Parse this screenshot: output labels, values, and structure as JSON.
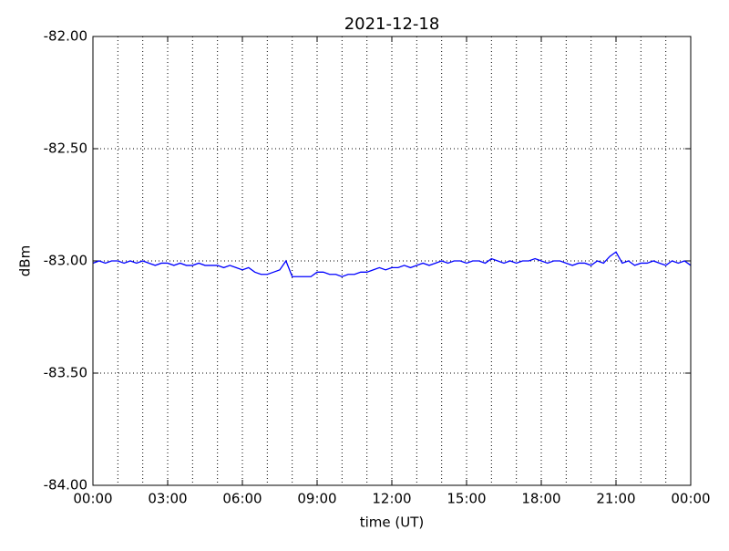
{
  "chart_data": {
    "type": "line",
    "title": "2021-12-18",
    "xlabel": "time (UT)",
    "ylabel": "dBm",
    "x": [
      0,
      0.25,
      0.5,
      0.75,
      1,
      1.25,
      1.5,
      1.75,
      2,
      2.25,
      2.5,
      2.75,
      3,
      3.25,
      3.5,
      3.75,
      4,
      4.25,
      4.5,
      4.75,
      5,
      5.25,
      5.5,
      5.75,
      6,
      6.25,
      6.5,
      6.75,
      7,
      7.25,
      7.5,
      7.75,
      8,
      8.25,
      8.5,
      8.75,
      9,
      9.25,
      9.5,
      9.75,
      10,
      10.25,
      10.5,
      10.75,
      11,
      11.25,
      11.5,
      11.75,
      12,
      12.25,
      12.5,
      12.75,
      13,
      13.25,
      13.5,
      13.75,
      14,
      14.25,
      14.5,
      14.75,
      15,
      15.25,
      15.5,
      15.75,
      16,
      16.25,
      16.5,
      16.75,
      17,
      17.25,
      17.5,
      17.75,
      18,
      18.25,
      18.5,
      18.75,
      19,
      19.25,
      19.5,
      19.75,
      20,
      20.25,
      20.5,
      20.75,
      21,
      21.25,
      21.5,
      21.75,
      22,
      22.25,
      22.5,
      22.75,
      23,
      23.25,
      23.5,
      23.75,
      24
    ],
    "series": [
      {
        "color": "#0000ff",
        "values": [
          -83.01,
          -83.0,
          -83.01,
          -83.0,
          -83.0,
          -83.01,
          -83.0,
          -83.01,
          -83.0,
          -83.01,
          -83.02,
          -83.01,
          -83.01,
          -83.02,
          -83.01,
          -83.02,
          -83.02,
          -83.01,
          -83.02,
          -83.02,
          -83.02,
          -83.03,
          -83.02,
          -83.03,
          -83.04,
          -83.03,
          -83.05,
          -83.06,
          -83.06,
          -83.05,
          -83.04,
          -83.0,
          -83.07,
          -83.07,
          -83.07,
          -83.07,
          -83.05,
          -83.05,
          -83.06,
          -83.06,
          -83.07,
          -83.06,
          -83.06,
          -83.05,
          -83.05,
          -83.04,
          -83.03,
          -83.04,
          -83.03,
          -83.03,
          -83.02,
          -83.03,
          -83.02,
          -83.01,
          -83.02,
          -83.01,
          -83.0,
          -83.01,
          -83.0,
          -83.0,
          -83.01,
          -83.0,
          -83.0,
          -83.01,
          -82.99,
          -83.0,
          -83.01,
          -83.0,
          -83.01,
          -83.0,
          -83.0,
          -82.99,
          -83.0,
          -83.01,
          -83.0,
          -83.0,
          -83.01,
          -83.02,
          -83.01,
          -83.01,
          -83.02,
          -83.0,
          -83.01,
          -82.98,
          -82.96,
          -83.01,
          -83.0,
          -83.02,
          -83.01,
          -83.01,
          -83.0,
          -83.01,
          -83.02,
          -83.0,
          -83.01,
          -83.0,
          -83.02
        ]
      }
    ],
    "xlim": [
      0,
      24
    ],
    "xticks": [
      {
        "value": 0,
        "label": "00:00"
      },
      {
        "value": 3,
        "label": "03:00"
      },
      {
        "value": 6,
        "label": "06:00"
      },
      {
        "value": 9,
        "label": "09:00"
      },
      {
        "value": 12,
        "label": "12:00"
      },
      {
        "value": 15,
        "label": "15:00"
      },
      {
        "value": 18,
        "label": "18:00"
      },
      {
        "value": 21,
        "label": "21:00"
      },
      {
        "value": 24,
        "label": "00:00"
      }
    ],
    "xminorticks": [
      1,
      2,
      4,
      5,
      7,
      8,
      10,
      11,
      13,
      14,
      16,
      17,
      19,
      20,
      22,
      23
    ],
    "ylim": [
      -84,
      -82
    ],
    "yticks": [
      {
        "value": -84,
        "label": "-84.00"
      },
      {
        "value": -83.5,
        "label": "-83.50"
      },
      {
        "value": -83,
        "label": "-83.00"
      },
      {
        "value": -82.5,
        "label": "-82.50"
      },
      {
        "value": -82,
        "label": "-82.00"
      }
    ],
    "grid": true
  }
}
